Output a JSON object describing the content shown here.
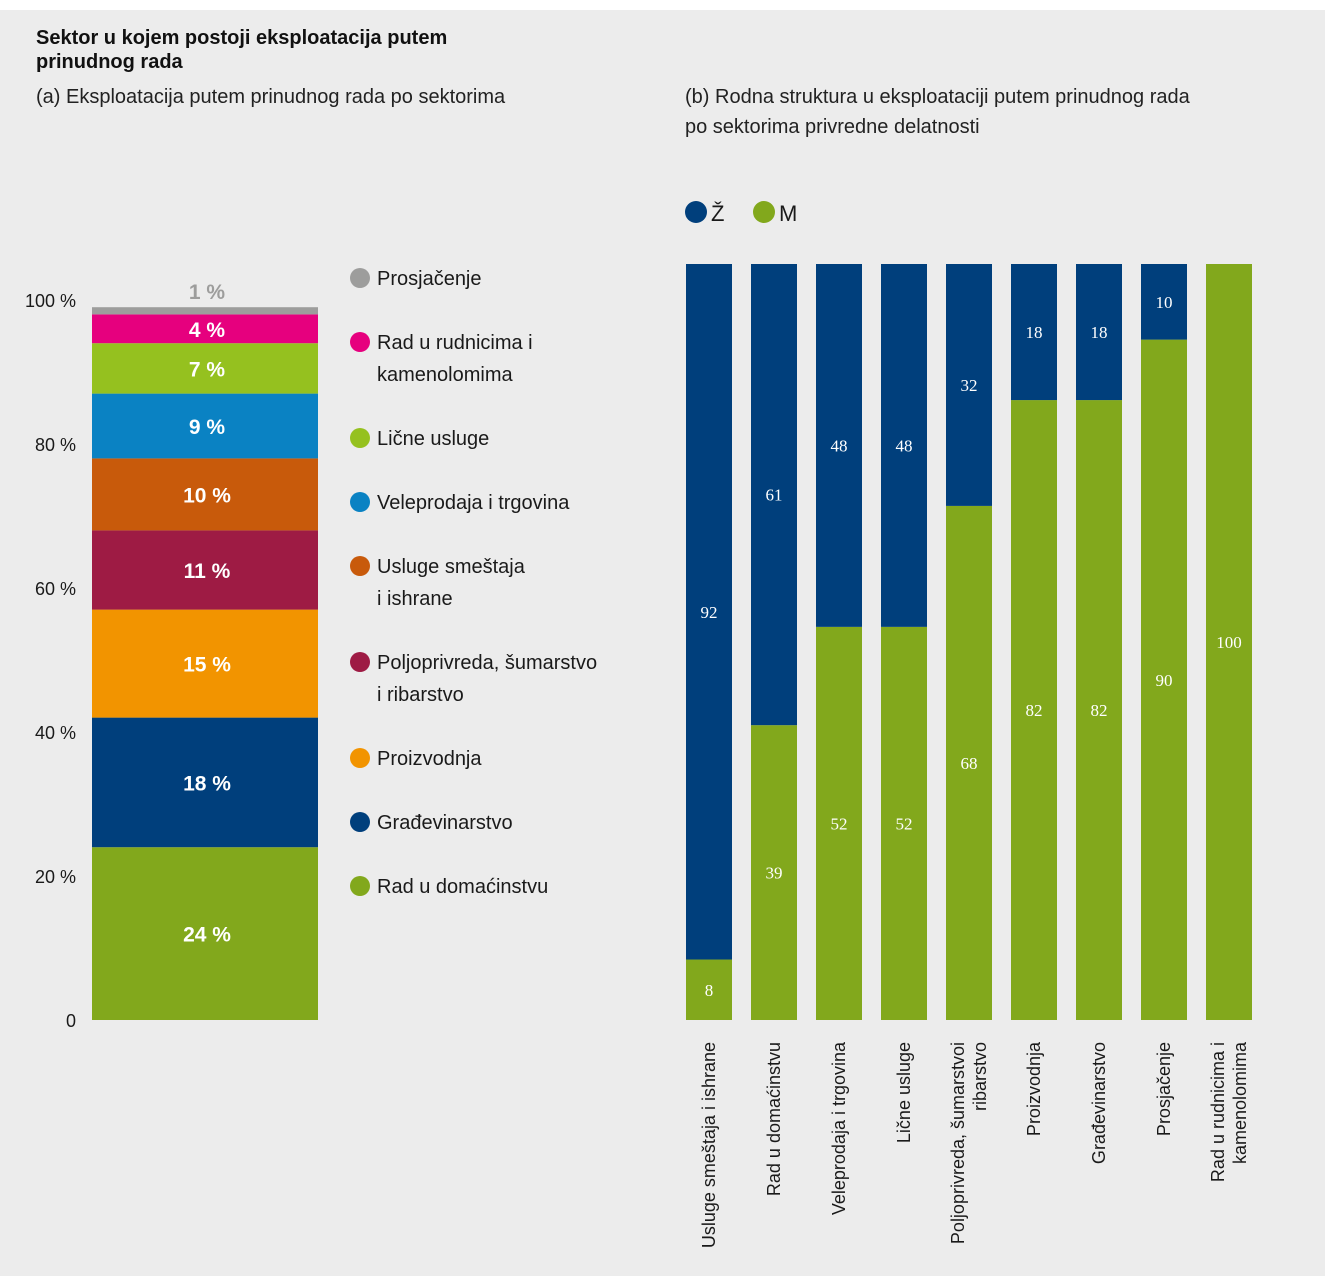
{
  "header": {
    "title_line1": "Sektor u kojem postoji eksploatacija putem",
    "title_line2": "prinudnog rada"
  },
  "colors": {
    "background": "#ececec",
    "female": "#003f7c",
    "male": "#82a81c",
    "label_light": "#ffffff",
    "tick_text": "#1a1a1a"
  },
  "chart_data": [
    {
      "type": "bar",
      "stacked": true,
      "subtitle": "(a) Eksploatacija putem prinudnog rada po sektorima",
      "ylim": [
        0,
        100
      ],
      "yticks": [
        "0",
        "20 %",
        "40 %",
        "60 %",
        "80 %",
        "100 %"
      ],
      "segments": [
        {
          "name": "Rad u domaćinstvu",
          "value": 24,
          "label": "24 %",
          "color": "#82a81c"
        },
        {
          "name": "Građevinarstvo",
          "value": 18,
          "label": "18 %",
          "color": "#003f7c"
        },
        {
          "name": "Proizvodnja",
          "value": 15,
          "label": "15 %",
          "color": "#f29400"
        },
        {
          "name": "Poljoprivreda, šumarstvo i ribarstvo",
          "legend_lines": [
            "Poljoprivreda, šumarstvo",
            "i ribarstvo"
          ],
          "value": 11,
          "label": "11 %",
          "color": "#9e1b44"
        },
        {
          "name": "Usluge smeštaja i ishrane",
          "legend_lines": [
            "Usluge smeštaja",
            "i ishrane"
          ],
          "value": 10,
          "label": "10 %",
          "color": "#c85a0b"
        },
        {
          "name": "Veleprodaja i trgovina",
          "value": 9,
          "label": "9 %",
          "color": "#0a82c3"
        },
        {
          "name": "Lične usluge",
          "value": 7,
          "label": "7 %",
          "color": "#95c11f"
        },
        {
          "name": "Rad u rudnicima i kamenolomima",
          "legend_lines": [
            "Rad u rudnicima i",
            "kamenolomima"
          ],
          "value": 4,
          "label": "4 %",
          "color": "#e6007e"
        },
        {
          "name": "Prosjačenje",
          "value": 1,
          "label": "1 %",
          "color": "#9d9d9c"
        }
      ],
      "legend_order": [
        "Prosjačenje",
        "Rad u rudnicima i kamenolomima",
        "Lične usluge",
        "Veleprodaja i trgovina",
        "Usluge smeštaja i ishrane",
        "Poljoprivreda, šumarstvo i ribarstvo",
        "Proizvodnja",
        "Građevinarstvo",
        "Rad u domaćinstvu"
      ]
    },
    {
      "type": "bar",
      "stacked": true,
      "subtitle_lines": [
        "(b) Rodna struktura u eksploataciji putem prinudnog rada",
        "po sektorima privredne delatnosti"
      ],
      "ylim": [
        0,
        100
      ],
      "legend": [
        {
          "name": "Ž",
          "color": "#003f7c"
        },
        {
          "name": "M",
          "color": "#82a81c"
        }
      ],
      "categories": [
        [
          "Usluge smeštaja i ishrane"
        ],
        [
          "Rad u domaćinstvu"
        ],
        [
          "Veleprodaja i trgovina"
        ],
        [
          "Lične usluge"
        ],
        [
          "Poljoprivreda, šumarstvoi",
          "ribarstvo"
        ],
        [
          "Proizvodnja"
        ],
        [
          "Građevinarstvo"
        ],
        [
          "Prosjačenje"
        ],
        [
          "Rad u rudnicima i",
          "kamenolomima"
        ]
      ],
      "series": [
        {
          "name": "M",
          "values": [
            8,
            39,
            52,
            52,
            68,
            82,
            82,
            90,
            100
          ],
          "color": "#82a81c"
        },
        {
          "name": "Ž",
          "values": [
            92,
            61,
            48,
            48,
            32,
            18,
            18,
            10,
            0
          ],
          "color": "#003f7c"
        }
      ]
    }
  ]
}
